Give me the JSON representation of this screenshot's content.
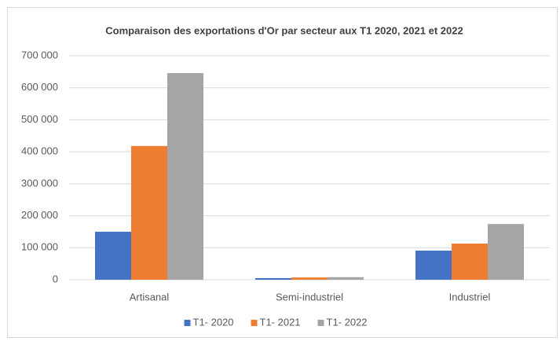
{
  "chart_data": {
    "type": "bar",
    "title": "Comparaison des exportations d'Or par secteur aux T1 2020, 2021 et 2022",
    "categories": [
      "Artisanal",
      "Semi-industriel",
      "Industriel"
    ],
    "series": [
      {
        "name": "T1- 2020",
        "color": "#4472c4",
        "values": [
          150000,
          5000,
          91000
        ]
      },
      {
        "name": "T1- 2021",
        "color": "#ed7d31",
        "values": [
          418000,
          7000,
          113000
        ]
      },
      {
        "name": "T1- 2022",
        "color": "#a5a5a5",
        "values": [
          646000,
          8000,
          174000
        ]
      }
    ],
    "ylim": [
      0,
      700000
    ],
    "yticks": [
      0,
      {
        "value": 100000,
        "label": "100 000"
      },
      {
        "value": 200000,
        "label": "200 000"
      },
      {
        "value": 300000,
        "label": "300 000"
      },
      {
        "value": 400000,
        "label": "400 000"
      },
      {
        "value": 500000,
        "label": "500 000"
      },
      {
        "value": 600000,
        "label": "600 000"
      },
      {
        "value": 700000,
        "label": "700 000"
      }
    ],
    "grid": true,
    "legend": "bottom"
  }
}
